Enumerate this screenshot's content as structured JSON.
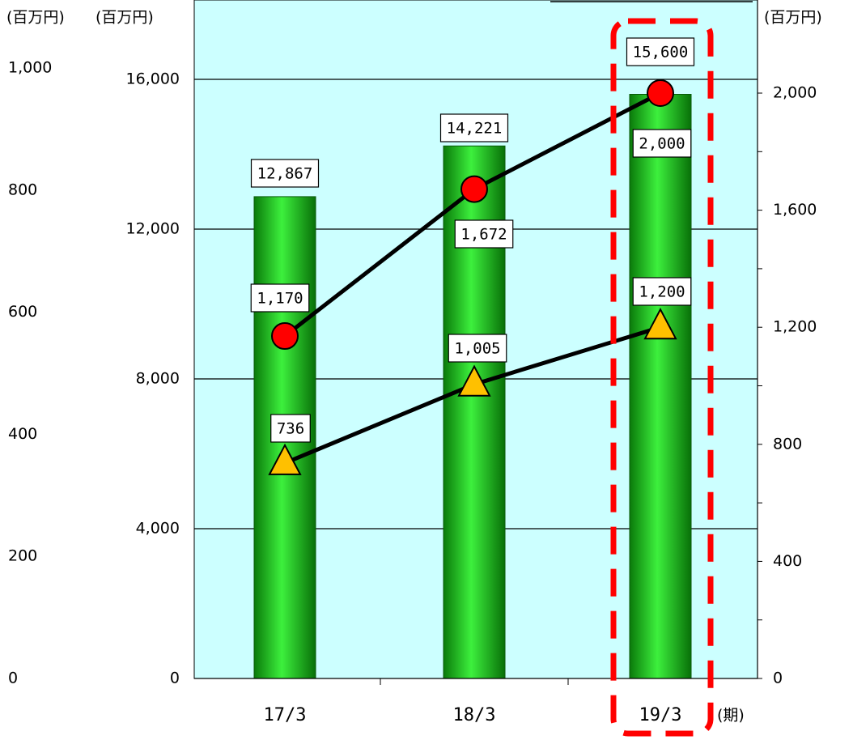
{
  "chart_data": {
    "type": "bar",
    "categories": [
      "17/3",
      "18/3",
      "19/3"
    ],
    "bar_axis": {
      "unit_label": "(百万円)",
      "ylim": [
        0,
        16000
      ],
      "ticks": [
        "0",
        "4,000",
        "8,000",
        "12,000",
        "16,000"
      ]
    },
    "left_outer_axis": {
      "unit_label": "(百万円)",
      "ylim": [
        0,
        1000
      ],
      "ticks": [
        "0",
        "200",
        "400",
        "600",
        "800",
        "1,000"
      ]
    },
    "right_axis": {
      "unit_label": "(百万円)",
      "ylim": [
        0,
        2000
      ],
      "ticks": [
        "0",
        "400",
        "800",
        "1,200",
        "1,600",
        "2,000"
      ]
    },
    "x_unit_label": "(期)",
    "series": [
      {
        "type": "bar",
        "axis": "bar_axis",
        "values": [
          12867,
          14221,
          15600
        ],
        "labels": [
          "12,867",
          "14,221",
          "15,600"
        ],
        "color": "#22c022"
      },
      {
        "type": "line",
        "axis": "right_axis",
        "marker": "circle",
        "values": [
          1170,
          1672,
          2000
        ],
        "labels": [
          "1,170",
          "1,672",
          "2,000"
        ],
        "color": "#ff0000"
      },
      {
        "type": "line",
        "axis": "right_axis",
        "marker": "triangle",
        "values": [
          736,
          1005,
          1200
        ],
        "labels": [
          "736",
          "1,005",
          "1,200"
        ],
        "color": "#ffc000"
      }
    ],
    "highlight_category": "19/3",
    "colors": {
      "plot_bg": "#ccffff",
      "highlight": "#ff0000",
      "line": "#000000"
    },
    "grid": true,
    "legend": "none"
  }
}
